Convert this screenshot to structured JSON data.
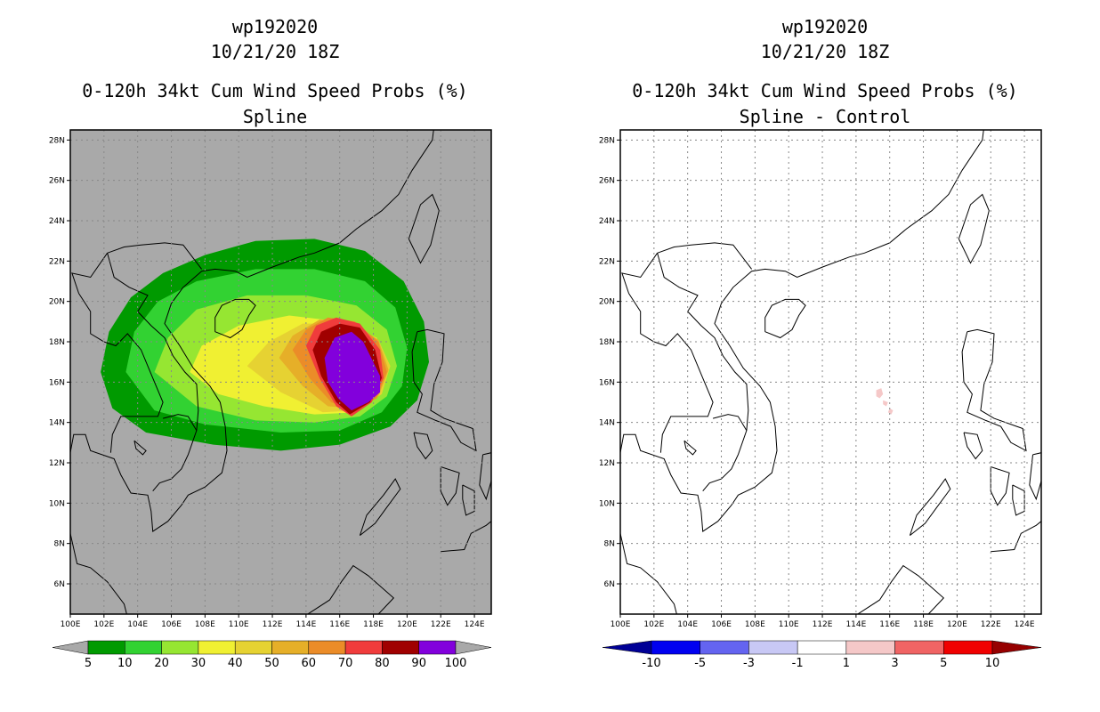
{
  "chart_data": [
    {
      "type": "map-contour",
      "id": "left",
      "title": [
        "wp192020",
        "10/21/20 18Z",
        "0-120h 34kt Cum Wind Speed Probs (%)",
        "Spline"
      ],
      "lon_range": [
        100,
        125
      ],
      "lat_range": [
        4.5,
        28.5
      ],
      "x_ticks": [
        "100E",
        "102E",
        "104E",
        "106E",
        "108E",
        "110E",
        "112E",
        "114E",
        "116E",
        "118E",
        "120E",
        "122E",
        "124E"
      ],
      "y_ticks": [
        "6N",
        "8N",
        "10N",
        "12N",
        "14N",
        "16N",
        "18N",
        "20N",
        "22N",
        "24N",
        "26N",
        "28N"
      ],
      "background": "#a9a9a9",
      "grid": true,
      "colorbar": {
        "labels": [
          "5",
          "10",
          "20",
          "30",
          "40",
          "50",
          "60",
          "70",
          "80",
          "90",
          "100"
        ],
        "colors": [
          "#009a00",
          "#32d232",
          "#96e632",
          "#f0f032",
          "#e6d232",
          "#e6af28",
          "#eb8c28",
          "#f03c3c",
          "#a00000",
          "#8200dc"
        ]
      },
      "contours": [
        {
          "level": 5,
          "color": "#009a00",
          "polygon": [
            [
              101.8,
              16.5
            ],
            [
              102.3,
              18.5
            ],
            [
              103.6,
              20.2
            ],
            [
              105.5,
              21.4
            ],
            [
              108,
              22.3
            ],
            [
              111,
              23
            ],
            [
              114.5,
              23.1
            ],
            [
              117.5,
              22.5
            ],
            [
              119.8,
              21
            ],
            [
              121,
              19
            ],
            [
              121.3,
              17
            ],
            [
              120.6,
              15.1
            ],
            [
              119,
              13.8
            ],
            [
              116,
              12.9
            ],
            [
              112.5,
              12.6
            ],
            [
              108.5,
              12.9
            ],
            [
              104.5,
              13.5
            ],
            [
              102.5,
              14.7
            ]
          ]
        },
        {
          "level": 10,
          "color": "#32d232",
          "polygon": [
            [
              103.3,
              16.5
            ],
            [
              103.8,
              18.5
            ],
            [
              105.2,
              20
            ],
            [
              107.5,
              21
            ],
            [
              111,
              21.6
            ],
            [
              114.5,
              21.6
            ],
            [
              117.5,
              21
            ],
            [
              119.3,
              19.7
            ],
            [
              120,
              17.7
            ],
            [
              119.7,
              15.8
            ],
            [
              118.5,
              14.5
            ],
            [
              116,
              13.6
            ],
            [
              112.5,
              13.5
            ],
            [
              108,
              13.9
            ],
            [
              105,
              14.6
            ]
          ]
        },
        {
          "level": 20,
          "color": "#96e632",
          "polygon": [
            [
              105,
              16.5
            ],
            [
              105.8,
              18.2
            ],
            [
              107.5,
              19.6
            ],
            [
              110.5,
              20.3
            ],
            [
              114,
              20.3
            ],
            [
              117,
              19.8
            ],
            [
              118.8,
              18.6
            ],
            [
              119.4,
              16.8
            ],
            [
              118.8,
              15.3
            ],
            [
              117.2,
              14.3
            ],
            [
              114.5,
              14
            ],
            [
              111,
              14.1
            ],
            [
              107.5,
              14.8
            ]
          ]
        },
        {
          "level": 30,
          "color": "#f0f032",
          "polygon": [
            [
              107.1,
              16.5
            ],
            [
              107.8,
              17.8
            ],
            [
              110,
              18.8
            ],
            [
              113,
              19.3
            ],
            [
              116,
              19
            ],
            [
              118.2,
              18.2
            ],
            [
              119,
              16.8
            ],
            [
              118.5,
              15.5
            ],
            [
              117,
              14.5
            ],
            [
              114.5,
              14.4
            ],
            [
              111.5,
              14.8
            ],
            [
              108.8,
              15.4
            ]
          ]
        },
        {
          "level": 40,
          "color": "#e6d232",
          "polygon": [
            [
              110.5,
              16.8
            ],
            [
              111.8,
              18
            ],
            [
              113.8,
              18.9
            ],
            [
              116.3,
              18.9
            ],
            [
              118.3,
              18.1
            ],
            [
              119,
              16.8
            ],
            [
              118.5,
              15.4
            ],
            [
              117,
              14.6
            ],
            [
              115,
              14.5
            ],
            [
              112.5,
              15.5
            ]
          ]
        },
        {
          "level": 50,
          "color": "#e6af28",
          "polygon": [
            [
              112.4,
              17.2
            ],
            [
              113.2,
              18.3
            ],
            [
              114.8,
              19.1
            ],
            [
              116.6,
              19
            ],
            [
              118.3,
              18.1
            ],
            [
              118.9,
              16.6
            ],
            [
              118.3,
              15.3
            ],
            [
              117,
              14.7
            ],
            [
              115.3,
              14.8
            ],
            [
              113.8,
              15.8
            ]
          ]
        },
        {
          "level": 60,
          "color": "#eb8c28",
          "polygon": [
            [
              113.2,
              17.6
            ],
            [
              114,
              18.6
            ],
            [
              115.3,
              19.2
            ],
            [
              116.9,
              19
            ],
            [
              118.3,
              18
            ],
            [
              118.8,
              16.5
            ],
            [
              118.2,
              15.2
            ],
            [
              116.8,
              14.6
            ],
            [
              115.5,
              15
            ],
            [
              114.2,
              16.2
            ]
          ]
        },
        {
          "level": 70,
          "color": "#f03c3c",
          "polygon": [
            [
              114,
              17.8
            ],
            [
              114.6,
              18.8
            ],
            [
              115.8,
              19.2
            ],
            [
              117.2,
              18.9
            ],
            [
              118.4,
              17.6
            ],
            [
              118.6,
              16.2
            ],
            [
              117.9,
              15
            ],
            [
              116.7,
              14.3
            ],
            [
              115.8,
              14.8
            ],
            [
              114.8,
              16.2
            ]
          ]
        },
        {
          "level": 80,
          "color": "#a00000",
          "polygon": [
            [
              114.4,
              17.6
            ],
            [
              114.9,
              18.5
            ],
            [
              116,
              18.9
            ],
            [
              117.2,
              18.7
            ],
            [
              118.1,
              17.6
            ],
            [
              118.5,
              16.2
            ],
            [
              117.8,
              15
            ],
            [
              116.6,
              14.4
            ],
            [
              115.8,
              15
            ],
            [
              114.9,
              16.3
            ]
          ]
        },
        {
          "level": 90,
          "color": "#8200dc",
          "polygon": [
            [
              115.1,
              17.2
            ],
            [
              115.7,
              18.2
            ],
            [
              116.7,
              18.5
            ],
            [
              117.4,
              18
            ],
            [
              118.4,
              16.3
            ],
            [
              118.4,
              15.5
            ],
            [
              117.7,
              15
            ],
            [
              116.7,
              14.6
            ],
            [
              115.9,
              15.2
            ],
            [
              115.3,
              16
            ]
          ]
        }
      ]
    },
    {
      "type": "map-contour",
      "id": "right",
      "title": [
        "wp192020",
        "10/21/20 18Z",
        "0-120h 34kt Cum Wind Speed Probs (%)",
        "Spline - Control"
      ],
      "lon_range": [
        100,
        125
      ],
      "lat_range": [
        4.5,
        28.5
      ],
      "x_ticks": [
        "100E",
        "102E",
        "104E",
        "106E",
        "108E",
        "110E",
        "112E",
        "114E",
        "116E",
        "118E",
        "120E",
        "122E",
        "124E"
      ],
      "y_ticks": [
        "6N",
        "8N",
        "10N",
        "12N",
        "14N",
        "16N",
        "18N",
        "20N",
        "22N",
        "24N",
        "26N",
        "28N"
      ],
      "background": "#ffffff",
      "grid": true,
      "colorbar": {
        "labels": [
          "-10",
          "-5",
          "-3",
          "-1",
          "1",
          "3",
          "5",
          "10"
        ],
        "colors": [
          "#000096",
          "#0000f0",
          "#6464f0",
          "#c8c8f5",
          "#ffffff",
          "#f5c8c8",
          "#f06464",
          "#f00000",
          "#960000"
        ]
      },
      "contours": [
        {
          "level": 1,
          "color": "#f5c8c8",
          "polygon": [
            [
              115.2,
              15.6
            ],
            [
              115.5,
              15.7
            ],
            [
              115.6,
              15.4
            ],
            [
              115.4,
              15.2
            ],
            [
              115.2,
              15.3
            ]
          ]
        },
        {
          "level": 1,
          "color": "#f5c8c8",
          "polygon": [
            [
              115.6,
              15.1
            ],
            [
              115.9,
              15
            ],
            [
              115.8,
              14.8
            ],
            [
              115.6,
              14.9
            ]
          ]
        },
        {
          "level": 1,
          "color": "#f5c8c8",
          "polygon": [
            [
              116,
              14.7
            ],
            [
              116.2,
              14.6
            ],
            [
              116.1,
              14.4
            ],
            [
              115.9,
              14.5
            ]
          ]
        }
      ]
    }
  ]
}
